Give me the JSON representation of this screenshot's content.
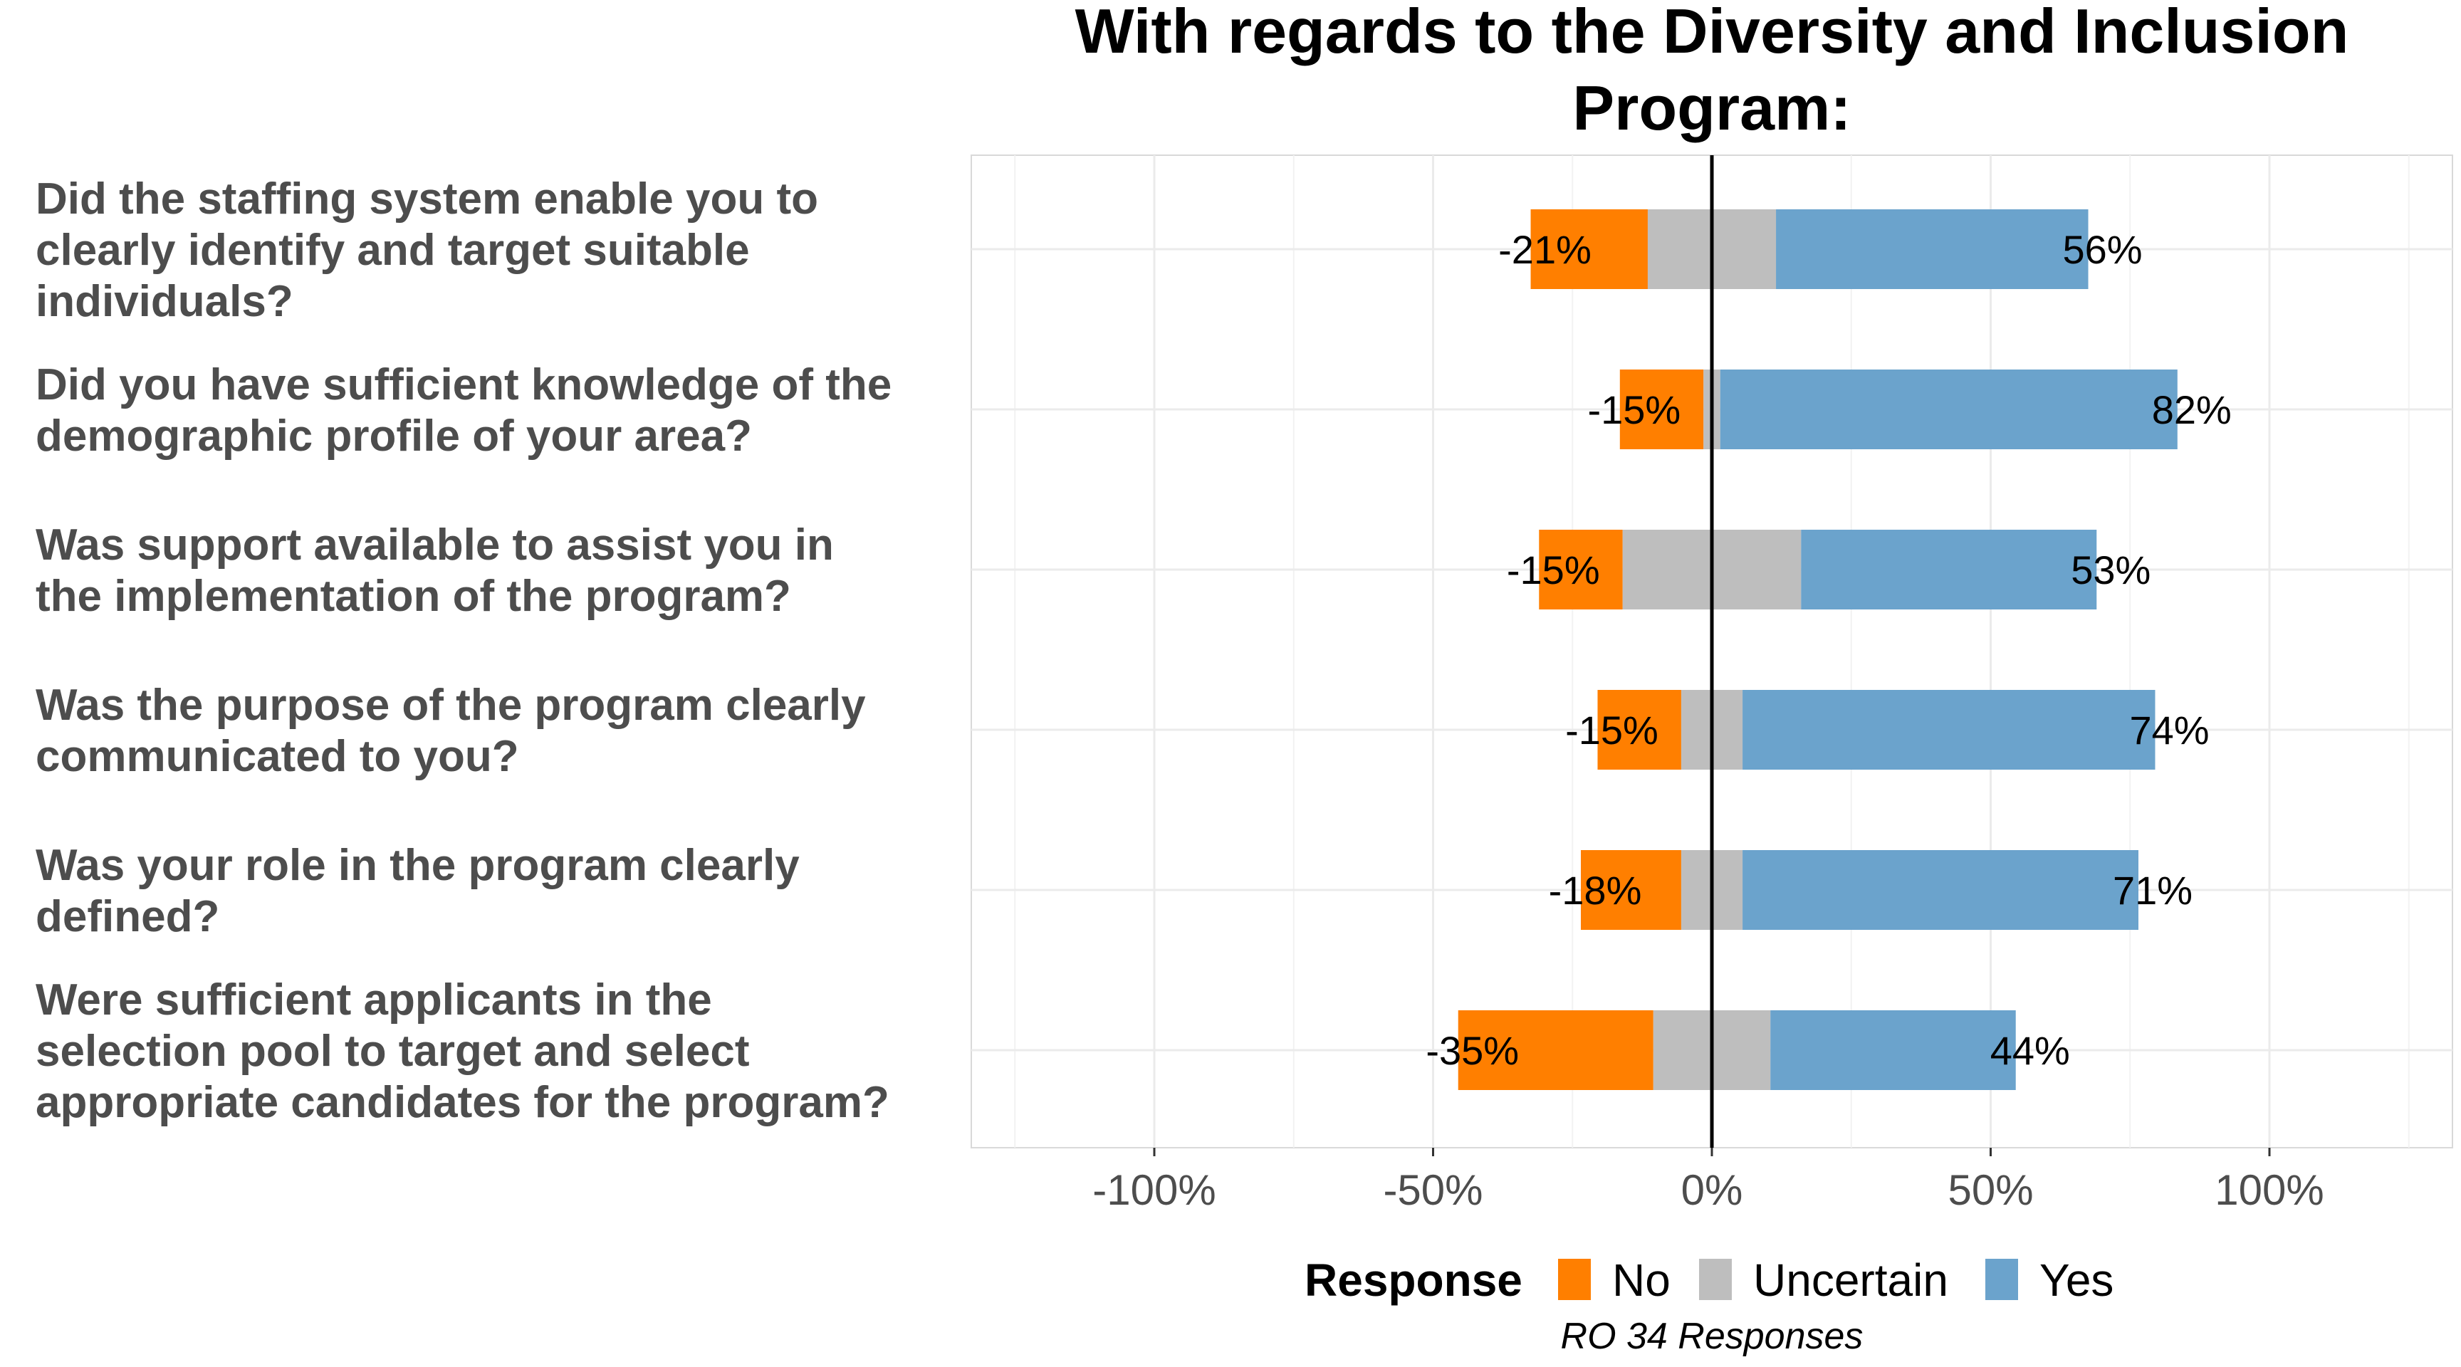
{
  "chart_data": {
    "type": "bar",
    "orientation": "horizontal-diverging",
    "title": "With regards to the Diversity and Inclusion Program:",
    "categories": [
      "Did the staffing system enable you to clearly identify and target suitable individuals?",
      "Did you have sufficient knowledge of the demographic profile of your area?",
      "Was support available to assist you in the implementation of the program?",
      "Was the purpose of the program clearly communicated to you?",
      "Was your role in the program clearly defined?",
      "Were sufficient applicants in the selection pool to target and select appropriate candidates for the program?"
    ],
    "series": [
      {
        "name": "No",
        "color": "#FF7F00",
        "values": [
          21,
          15,
          15,
          15,
          18,
          35
        ]
      },
      {
        "name": "Uncertain",
        "color": "#BEBEBE",
        "values": [
          23,
          3,
          32,
          11,
          11,
          21
        ]
      },
      {
        "name": "Yes",
        "color": "#6BA3CC",
        "values": [
          56,
          82,
          53,
          74,
          71,
          44
        ]
      }
    ],
    "labels_no": [
      "-21%",
      "-15%",
      "-15%",
      "-15%",
      "-18%",
      "-35%"
    ],
    "labels_yes": [
      "56%",
      "82%",
      "53%",
      "74%",
      "71%",
      "44%"
    ],
    "xlim": [
      -130,
      130
    ],
    "xticks": [
      -100,
      -50,
      0,
      50,
      100
    ],
    "xtick_labels": [
      "-100%",
      "-50%",
      "0%",
      "50%",
      "100%"
    ],
    "grid": true,
    "legend": {
      "title": "Response",
      "position": "bottom",
      "items": [
        "No",
        "Uncertain",
        "Yes"
      ]
    },
    "caption": "RO 34 Responses"
  }
}
